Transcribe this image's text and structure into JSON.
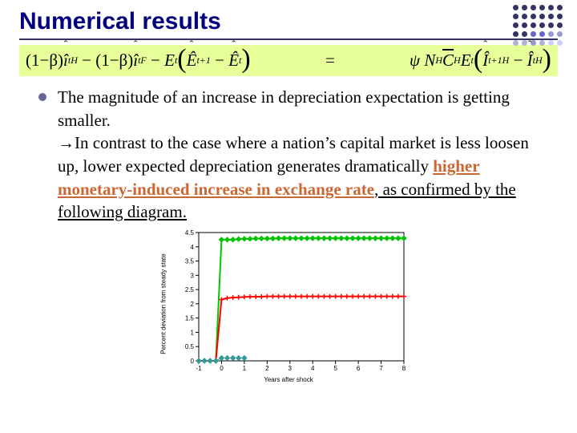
{
  "title": "Numerical results",
  "corner_dot_colors": [
    "#333366",
    "#333366",
    "#333366",
    "#333366",
    "#333366",
    "#333366",
    "#333366",
    "#333366",
    "#333366",
    "#333366",
    "#333366",
    "#333366",
    "#333366",
    "#333366",
    "#333366",
    "#333366",
    "#333366",
    "#333366",
    "#333366",
    "#333366",
    "#6666cc",
    "#6666cc",
    "#9999cc",
    "#9999cc",
    "#b0b0d8",
    "#b0b0d8",
    "#9999cc",
    "#b0b0d8",
    "#ccccff",
    "#ccccff"
  ],
  "equation": {
    "bg_color": "#e6ff99",
    "lhs_terms": {
      "t1_coef": "(1−β)",
      "t1_var": "î",
      "t1_sup": "H",
      "t1_sub": "t",
      "t2_coef": "(1−β)",
      "t2_var": "î",
      "t2_sup": "F",
      "t2_sub": "t",
      "t3_E": "E",
      "t3_sub": "t",
      "t3_inner1_var": "Ê",
      "t3_inner1_sub": "t+1",
      "t3_inner2_var": "Ê",
      "t3_inner2_sub": "t"
    },
    "rhs_terms": {
      "psi": "ψ",
      "N": "N",
      "N_sup": "H",
      "C": "C",
      "C_sup": "H",
      "E": "E",
      "E_sub": "t",
      "I1_var": "Î",
      "I1_sup": "H",
      "I1_sub": "t+1",
      "I2_var": "Î",
      "I2_sup": "H",
      "I2_sub": "t"
    }
  },
  "body": {
    "p1": "The magnitude of an increase in depreciation expectation is getting smaller.",
    "arrow": "→",
    "p2a": "In contrast to the case where a nation’s capital market is less loosen up, lower expected depreciation generates dramatically ",
    "p2_emph": "higher monetary-induced increase in exchange rate",
    "p2b": ", as confirmed by the following diagram."
  },
  "chart": {
    "type": "line",
    "xlabel": "Years after shock",
    "ylabel": "Percent deviation from steady state",
    "xlim": [
      -1,
      8
    ],
    "ylim": [
      0,
      4.5
    ],
    "xticks": [
      -1,
      0,
      1,
      2,
      3,
      4,
      5,
      6,
      7,
      8
    ],
    "yticks": [
      0,
      0.5,
      1,
      1.5,
      2,
      2.5,
      3,
      3.5,
      4,
      4.5
    ],
    "background_color": "#ffffff",
    "axis_color": "#000000",
    "series": [
      {
        "name": "green",
        "color": "#00c400",
        "marker": "diamond",
        "marker_size": 3,
        "line_width": 2,
        "x": [
          -1,
          -0.75,
          -0.5,
          -0.25,
          0,
          0.25,
          0.5,
          0.75,
          1,
          1.25,
          1.5,
          1.75,
          2,
          2.25,
          2.5,
          2.75,
          3,
          3.25,
          3.5,
          3.75,
          4,
          4.25,
          4.5,
          4.75,
          5,
          5.25,
          5.5,
          5.75,
          6,
          6.25,
          6.5,
          6.75,
          7,
          7.25,
          7.5,
          7.75,
          8
        ],
        "y": [
          0,
          0,
          0,
          0,
          4.25,
          4.25,
          4.25,
          4.27,
          4.28,
          4.28,
          4.29,
          4.29,
          4.29,
          4.29,
          4.3,
          4.3,
          4.3,
          4.3,
          4.3,
          4.3,
          4.3,
          4.3,
          4.3,
          4.3,
          4.3,
          4.3,
          4.3,
          4.3,
          4.3,
          4.3,
          4.3,
          4.3,
          4.3,
          4.3,
          4.3,
          4.3,
          4.3
        ]
      },
      {
        "name": "red",
        "color": "#ff0000",
        "marker": "plus",
        "marker_size": 3,
        "line_width": 2,
        "x": [
          -1,
          -0.75,
          -0.5,
          -0.25,
          0,
          0.25,
          0.5,
          0.75,
          1,
          1.25,
          1.5,
          1.75,
          2,
          2.25,
          2.5,
          2.75,
          3,
          3.25,
          3.5,
          3.75,
          4,
          4.25,
          4.5,
          4.75,
          5,
          5.25,
          5.5,
          5.75,
          6,
          6.25,
          6.5,
          6.75,
          7,
          7.25,
          7.5,
          7.75,
          8
        ],
        "y": [
          0,
          0,
          0,
          0,
          2.15,
          2.2,
          2.22,
          2.23,
          2.24,
          2.25,
          2.25,
          2.25,
          2.26,
          2.26,
          2.26,
          2.26,
          2.26,
          2.26,
          2.26,
          2.26,
          2.26,
          2.26,
          2.26,
          2.26,
          2.26,
          2.26,
          2.26,
          2.26,
          2.26,
          2.26,
          2.26,
          2.26,
          2.26,
          2.26,
          2.26,
          2.26,
          2.26
        ]
      },
      {
        "name": "teal",
        "color": "#339999",
        "marker": "diamond",
        "marker_size": 3,
        "line_width": 1,
        "x": [
          -1,
          -0.75,
          -0.5,
          -0.25,
          0,
          0.25,
          0.5,
          0.75,
          1
        ],
        "y": [
          0,
          0,
          0,
          0,
          0.1,
          0.1,
          0.1,
          0.1,
          0.1
        ]
      }
    ]
  }
}
